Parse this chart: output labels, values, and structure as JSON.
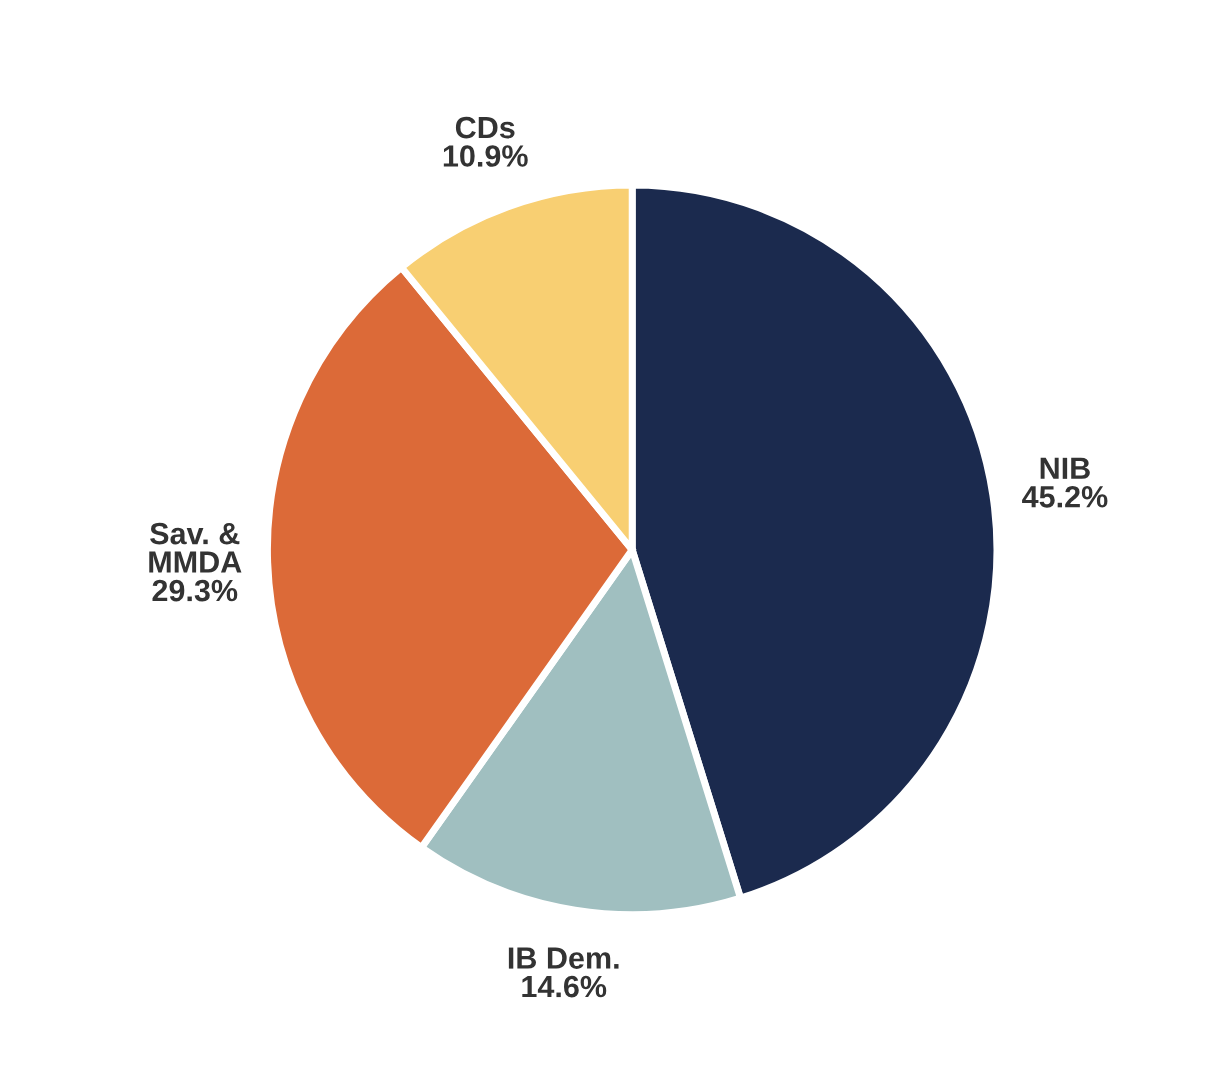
{
  "chart_data": {
    "type": "pie",
    "categories": [
      "NIB",
      "IB Dem.",
      "Sav. &\nMMDA",
      "CDs"
    ],
    "values": [
      45.2,
      14.6,
      29.3,
      10.9
    ],
    "value_labels": [
      "45.2%",
      "14.6%",
      "29.3%",
      "10.9%"
    ],
    "colors": [
      "#1b2a4e",
      "#a0bfc0",
      "#dc6a38",
      "#f8cf72"
    ]
  }
}
